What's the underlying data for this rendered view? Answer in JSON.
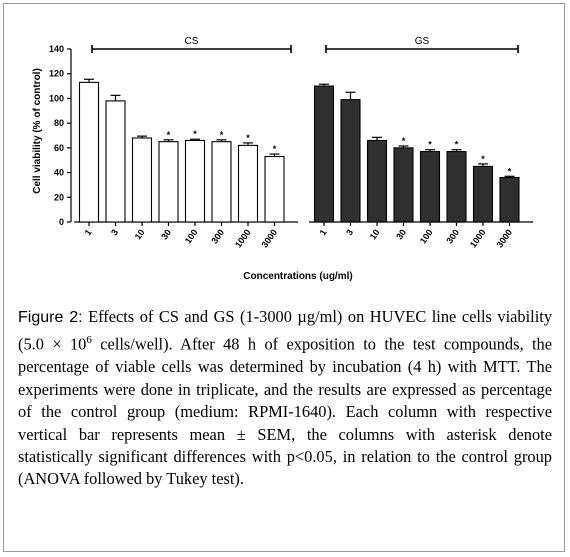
{
  "chart_data": {
    "type": "bar",
    "ylabel": "Cell viability (% of control)",
    "xlabel": "Concentrations (ug/ml)",
    "ylim": [
      0,
      140
    ],
    "yticks": [
      "0",
      "20",
      "40",
      "60",
      "80",
      "100",
      "120",
      "140"
    ],
    "grid": false,
    "groups": [
      {
        "name": "CS",
        "color": "#ffffff",
        "categories": [
          "1",
          "3",
          "10",
          "30",
          "100",
          "300",
          "1000",
          "3000"
        ],
        "values": [
          113,
          98,
          68,
          65,
          66,
          65,
          62,
          53
        ],
        "sem": [
          2.5,
          4.5,
          1.5,
          1.5,
          1,
          1.5,
          2,
          2
        ],
        "significant": [
          false,
          false,
          false,
          true,
          true,
          true,
          true,
          true
        ]
      },
      {
        "name": "GS",
        "color": "#2f2f2f",
        "categories": [
          "1",
          "3",
          "10",
          "30",
          "100",
          "300",
          "1000",
          "3000"
        ],
        "values": [
          110,
          99,
          66,
          60,
          57,
          57,
          45,
          36
        ],
        "sem": [
          1.5,
          6,
          2.5,
          1.5,
          1.5,
          1.5,
          2,
          1
        ],
        "significant": [
          false,
          false,
          false,
          true,
          true,
          true,
          true,
          true
        ]
      }
    ],
    "significance_marker": "*"
  },
  "caption": {
    "label": "Figure 2:",
    "text_1": " Effects of CS and GS (1-3000 µg/ml) on HUVEC line cells viability (5.0 × 10",
    "superscript": "6",
    "text_2": " cells/well). After 48 h of exposition to the test compounds, the percentage of viable cells was determined by incubation (4 h) with MTT. The experiments were done in triplicate, and the results are expressed as percentage of the control group (medium: RPMI-1640). Each column with respective vertical bar represents mean ± SEM, the columns with asterisk denote statistically significant differences with p<0.05, in relation to the control group (ANOVA followed by Tukey test)."
  }
}
